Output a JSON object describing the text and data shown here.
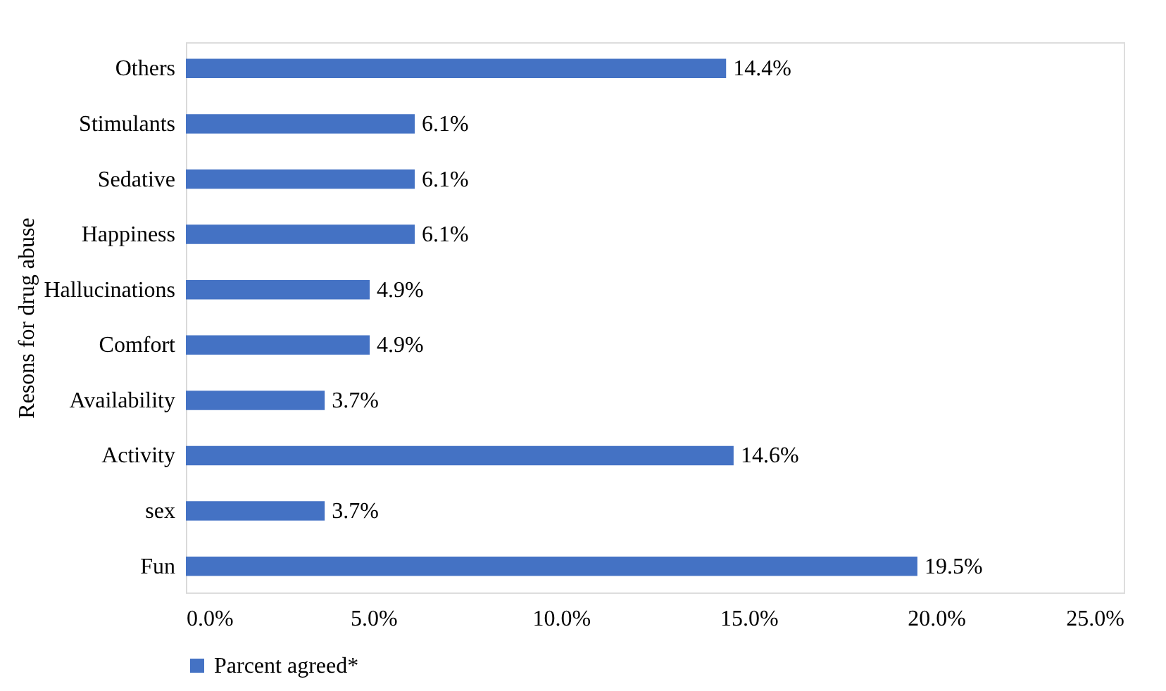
{
  "chart_data": {
    "type": "bar",
    "orientation": "horizontal",
    "ylabel": "Resons for drug abuse",
    "categories": [
      "Others",
      "Stimulants",
      "Sedative",
      "Happiness",
      "Hallucinations",
      "Comfort",
      "Availability",
      "Activity",
      "sex",
      "Fun"
    ],
    "series": [
      {
        "name": "Parcent agreed*",
        "color": "#4472c4",
        "values": [
          14.4,
          6.1,
          6.1,
          6.1,
          4.9,
          4.9,
          3.7,
          14.6,
          3.7,
          19.5
        ],
        "value_labels": [
          "14.4%",
          "6.1%",
          "6.1%",
          "6.1%",
          "4.9%",
          "4.9%",
          "3.7%",
          "14.6%",
          "3.7%",
          "19.5%"
        ]
      }
    ],
    "xlim": [
      0,
      25
    ],
    "xticks": [
      {
        "value": 0,
        "label": "0.0%"
      },
      {
        "value": 5,
        "label": "5.0%"
      },
      {
        "value": 10,
        "label": "10.0%"
      },
      {
        "value": 15,
        "label": "15.0%"
      },
      {
        "value": 20,
        "label": "20.0%"
      },
      {
        "value": 25,
        "label": "25.0%"
      }
    ],
    "grid": false,
    "legend": "bottom"
  }
}
